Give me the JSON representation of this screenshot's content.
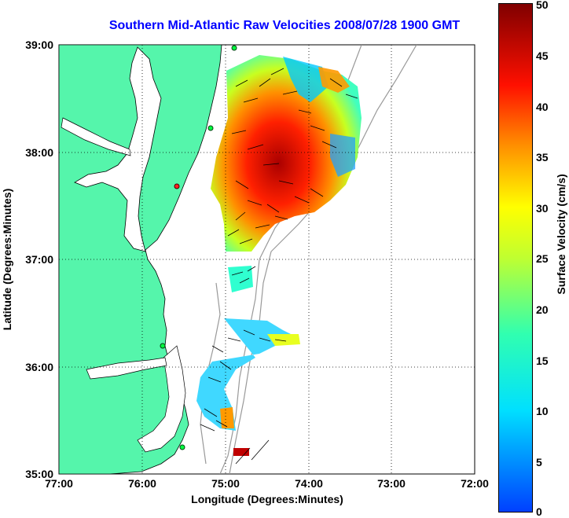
{
  "title": "Southern Mid-Atlantic Raw Velocities 2008/07/28 1900 GMT",
  "chart_data": {
    "type": "heatmap",
    "title": "Southern Mid-Atlantic Raw Velocities 2008/07/28 1900 GMT",
    "xlabel": "Longitude (Degrees:Minutes)",
    "ylabel": "Latitude (Degrees:Minutes)",
    "x_ticks": [
      "77:00",
      "76:00",
      "75:00",
      "74:00",
      "73:00",
      "72:00"
    ],
    "y_ticks": [
      "39:00",
      "38:00",
      "37:00",
      "36:00",
      "35:00"
    ],
    "xlim": [
      -77,
      -72
    ],
    "ylim": [
      35,
      39
    ],
    "grid": true,
    "colorbar": {
      "label": "Surface Velocity (cm/s)",
      "ticks": [
        "50",
        "45",
        "40",
        "35",
        "30",
        "25",
        "20",
        "15",
        "10",
        "5",
        "0"
      ],
      "range": [
        0,
        50
      ]
    }
  },
  "colors": {
    "land": "#55f5ab",
    "title": "#0000ff"
  }
}
